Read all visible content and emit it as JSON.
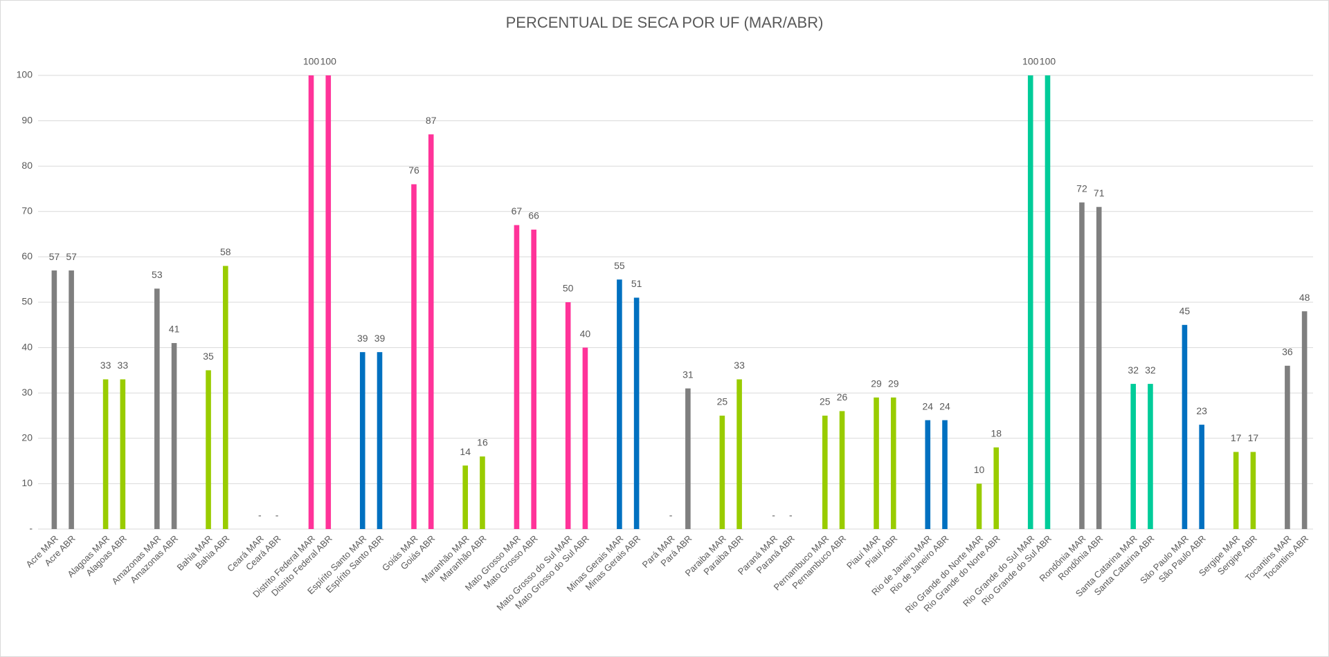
{
  "chart_data": {
    "type": "bar",
    "title": "PERCENTUAL DE SECA POR UF (MAR/ABR)",
    "categories": [
      "Acre MAR",
      "Acre ABR",
      null,
      "Alagoas MAR",
      "Alagoas ABR",
      null,
      "Amazonas MAR",
      "Amazonas ABR",
      null,
      "Bahia MAR",
      "Bahia ABR",
      null,
      "Ceará MAR",
      "Ceará ABR",
      null,
      "Distrito Federal MAR",
      "Distrito Federal ABR",
      null,
      "Espírito Santo MAR",
      "Espírito Santo ABR",
      null,
      "Goiás MAR",
      "Goiás ABR",
      null,
      "Maranhão MAR",
      "Maranhão ABR",
      null,
      "Mato Grosso MAR",
      "Mato Grosso ABR",
      null,
      "Mato Grosso do Sul MAR",
      "Mato Grosso do Sul ABR",
      null,
      "Minas Gerais MAR",
      "Minas Gerais ABR",
      null,
      "Pará MAR",
      "Pará ABR",
      null,
      "Paraiba MAR",
      "Paraiba ABR",
      null,
      "Paraná MAR",
      "Paraná ABR",
      null,
      "Pernambuco MAR",
      "Pernambuco ABR",
      null,
      "Piauí MAR",
      "Piauí ABR",
      null,
      "Rio de Janeiro MAR",
      "Rio de Janeiro ABR",
      null,
      "Rio Grande do Norte MAR",
      "Rio Grande do Norte ABR",
      null,
      "Rio Grande do Sul MAR",
      "Rio Grande do Sul ABR",
      null,
      "Rondônia MAR",
      "Rondônia ABR",
      null,
      "Santa Catarina MAR",
      "Santa Catarina ABR",
      null,
      "São Paulo MAR",
      "São Paulo ABR",
      null,
      "Sergipe MAR",
      "Sergipe ABR",
      null,
      "Tocantins MAR",
      "Tocantins ABR"
    ],
    "values": [
      57,
      57,
      null,
      33,
      33,
      null,
      53,
      41,
      null,
      35,
      58,
      null,
      0,
      0,
      null,
      100,
      100,
      null,
      39,
      39,
      null,
      76,
      87,
      null,
      14,
      16,
      null,
      67,
      66,
      null,
      50,
      40,
      null,
      55,
      51,
      null,
      0,
      31,
      null,
      25,
      33,
      null,
      0,
      0,
      null,
      25,
      26,
      null,
      29,
      29,
      null,
      24,
      24,
      null,
      10,
      18,
      null,
      100,
      100,
      null,
      72,
      71,
      null,
      32,
      32,
      null,
      45,
      23,
      null,
      17,
      17,
      null,
      36,
      48
    ],
    "value_labels": [
      "57",
      "57",
      null,
      "33",
      "33",
      null,
      "53",
      "41",
      null,
      "35",
      "58",
      null,
      "-",
      "-",
      null,
      "100",
      "100",
      null,
      "39",
      "39",
      null,
      "76",
      "87",
      null,
      "14",
      "16",
      null,
      "67",
      "66",
      null,
      "50",
      "40",
      null,
      "55",
      "51",
      null,
      "-",
      "31",
      null,
      "25",
      "33",
      null,
      "-",
      "-",
      null,
      "25",
      "26",
      null,
      "29",
      "29",
      null,
      "24",
      "24",
      null,
      "10",
      "18",
      null,
      "100",
      "100",
      null,
      "72",
      "71",
      null,
      "32",
      "32",
      null,
      "45",
      "23",
      null,
      "17",
      "17",
      null,
      "36",
      "48"
    ],
    "colors": [
      "#7f7f7f",
      "#7f7f7f",
      null,
      "#99cc00",
      "#99cc00",
      null,
      "#7f7f7f",
      "#7f7f7f",
      null,
      "#99cc00",
      "#99cc00",
      null,
      "#99cc00",
      "#99cc00",
      null,
      "#ff3399",
      "#ff3399",
      null,
      "#0070c0",
      "#0070c0",
      null,
      "#ff3399",
      "#ff3399",
      null,
      "#99cc00",
      "#99cc00",
      null,
      "#ff3399",
      "#ff3399",
      null,
      "#ff3399",
      "#ff3399",
      null,
      "#0070c0",
      "#0070c0",
      null,
      "#7f7f7f",
      "#7f7f7f",
      null,
      "#99cc00",
      "#99cc00",
      null,
      "#99cc00",
      "#99cc00",
      null,
      "#99cc00",
      "#99cc00",
      null,
      "#99cc00",
      "#99cc00",
      null,
      "#0070c0",
      "#0070c0",
      null,
      "#99cc00",
      "#99cc00",
      null,
      "#00cc99",
      "#00cc99",
      null,
      "#7f7f7f",
      "#7f7f7f",
      null,
      "#00cc99",
      "#00cc99",
      null,
      "#0070c0",
      "#0070c0",
      null,
      "#99cc00",
      "#99cc00",
      null,
      "#7f7f7f",
      "#7f7f7f"
    ],
    "ylim": [
      0,
      100
    ],
    "yticks": [
      {
        "value": 0,
        "label": "-"
      },
      10,
      20,
      30,
      40,
      50,
      60,
      70,
      80,
      90,
      100
    ],
    "grid": true
  }
}
